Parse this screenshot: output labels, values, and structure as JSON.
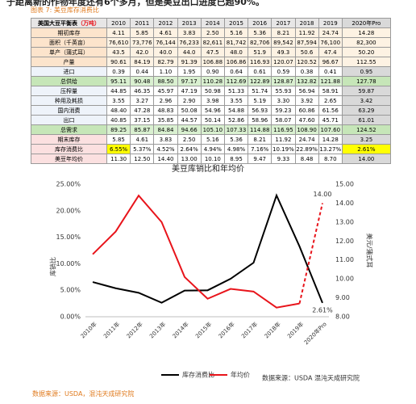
{
  "intro": "于距离新的作物年度还有6个多月，但是美豆出口进度已超90%。",
  "caption": "图表 7: 美豆库存消费比",
  "table": {
    "header_label": "美国大豆平衡表",
    "header_unit": "（万吨）",
    "columns": [
      "2010",
      "2011",
      "2012",
      "2013",
      "2014",
      "2015",
      "2016",
      "2017",
      "2018",
      "2019",
      "2020年Pro"
    ],
    "rows": [
      {
        "label": "期初库存",
        "cells": [
          "4.11",
          "5.85",
          "4.61",
          "3.83",
          "2.50",
          "5.16",
          "5.36",
          "8.21",
          "11.92",
          "24.74",
          "14.28"
        ]
      },
      {
        "label": "面积（千英亩）",
        "cells": [
          "76,610",
          "73,776",
          "76,144",
          "76,233",
          "82,611",
          "81,742",
          "82,706",
          "89,542",
          "87,594",
          "76,100",
          "82,300"
        ]
      },
      {
        "label": "单产（蒲式耳）",
        "cells": [
          "43.5",
          "42.0",
          "40.0",
          "44.0",
          "47.5",
          "48.0",
          "51.9",
          "49.3",
          "50.6",
          "47.4",
          "50.20"
        ]
      },
      {
        "label": "产量",
        "cells": [
          "90.61",
          "84.19",
          "82.79",
          "91.39",
          "106.88",
          "106.86",
          "116.93",
          "120.07",
          "120.52",
          "96.67",
          "112.55"
        ]
      },
      {
        "label": "进口",
        "cells": [
          "0.39",
          "0.44",
          "1.10",
          "1.95",
          "0.90",
          "0.64",
          "0.61",
          "0.59",
          "0.38",
          "0.41",
          "0.95"
        ]
      },
      {
        "label": "总供给",
        "cells": [
          "95.11",
          "90.48",
          "88.50",
          "97.17",
          "110.28",
          "112.69",
          "122.89",
          "128.87",
          "132.82",
          "121.88",
          "127.78"
        ]
      },
      {
        "label": "压榨量",
        "cells": [
          "44.85",
          "46.35",
          "45.97",
          "47.19",
          "50.98",
          "51.33",
          "51.74",
          "55.93",
          "56.94",
          "58.91",
          "59.87"
        ]
      },
      {
        "label": "种用及耗损",
        "cells": [
          "3.55",
          "3.27",
          "2.96",
          "2.90",
          "3.98",
          "3.55",
          "5.19",
          "3.30",
          "3.92",
          "2.65",
          "3.42"
        ]
      },
      {
        "label": "国内消费",
        "cells": [
          "48.40",
          "47.28",
          "48.83",
          "50.08",
          "54.96",
          "54.88",
          "56.93",
          "59.23",
          "60.86",
          "61.56",
          "63.29"
        ]
      },
      {
        "label": "出口",
        "cells": [
          "40.85",
          "37.15",
          "35.85",
          "44.57",
          "50.14",
          "52.86",
          "58.96",
          "58.07",
          "47.60",
          "45.71",
          "61.01"
        ]
      },
      {
        "label": "总需求",
        "cells": [
          "89.25",
          "85.87",
          "84.84",
          "94.66",
          "105.10",
          "107.33",
          "114.88",
          "116.95",
          "108.90",
          "107.60",
          "124.52"
        ]
      },
      {
        "label": "期末库存",
        "cells": [
          "5.85",
          "4.61",
          "3.83",
          "2.50",
          "5.16",
          "5.36",
          "8.21",
          "11.92",
          "24.74",
          "14.28",
          "3.25"
        ]
      },
      {
        "label": "库存消费比",
        "cells": [
          "6.55%",
          "5.37%",
          "4.52%",
          "2.64%",
          "4.94%",
          "4.98%",
          "7.16%",
          "10.19%",
          "22.89%",
          "13.27%",
          "2.61%"
        ]
      },
      {
        "label": "美豆年均价",
        "cells": [
          "11.30",
          "12.50",
          "14.40",
          "13.00",
          "10.10",
          "8.95",
          "9.47",
          "9.33",
          "8.48",
          "8.70",
          "14.00"
        ]
      }
    ]
  },
  "chart_data": {
    "type": "line",
    "title": "美豆库销比和年均价",
    "y_label": "库销比",
    "y2_label": "美元/蒲式耳",
    "source": "数据来源：USDA 混沌天成研究院",
    "categories": [
      "2010年",
      "2011年",
      "2012年",
      "2013年",
      "2014年",
      "2015年",
      "2016年",
      "2017年",
      "2018年",
      "2019年",
      "2020年Pro"
    ],
    "ylim": [
      0,
      25
    ],
    "yticks": [
      {
        "value": 0,
        "label": "0.00%"
      },
      {
        "value": 5,
        "label": "5.00%"
      },
      {
        "value": 10,
        "label": "10.00%"
      },
      {
        "value": 15,
        "label": "15.00%"
      },
      {
        "value": 20,
        "label": "20.00%"
      },
      {
        "value": 25,
        "label": "25.00%"
      }
    ],
    "y2lim": [
      8,
      15
    ],
    "y2ticks": [
      {
        "value": 8,
        "label": "8.00"
      },
      {
        "value": 9,
        "label": "9.00"
      },
      {
        "value": 10,
        "label": "10.00"
      },
      {
        "value": 11,
        "label": "11.00"
      },
      {
        "value": 12,
        "label": "12.00"
      },
      {
        "value": 13,
        "label": "13.00"
      },
      {
        "value": 14,
        "label": "14.00"
      },
      {
        "value": 15,
        "label": "15.00"
      }
    ],
    "legend": "bottom",
    "series": [
      {
        "name": "库存消费比",
        "color": "#000000",
        "values": [
          6.55,
          5.37,
          4.52,
          2.64,
          4.94,
          4.98,
          7.16,
          10.19,
          22.89,
          13.27,
          2.61
        ],
        "value_labels": [
          null,
          null,
          null,
          null,
          null,
          null,
          null,
          null,
          null,
          null,
          "2.61%"
        ]
      },
      {
        "name": "年均价",
        "color": "#e8141b",
        "axis": "y2",
        "dashed_last_segment": true,
        "values": [
          11.3,
          12.5,
          14.4,
          13.0,
          10.1,
          8.95,
          9.47,
          9.33,
          8.48,
          8.7,
          14.0
        ],
        "value_labels": [
          null,
          null,
          null,
          null,
          null,
          null,
          null,
          null,
          null,
          null,
          "14.00"
        ]
      }
    ]
  },
  "footer": "数据来源：USDA，混沌天成研究院"
}
